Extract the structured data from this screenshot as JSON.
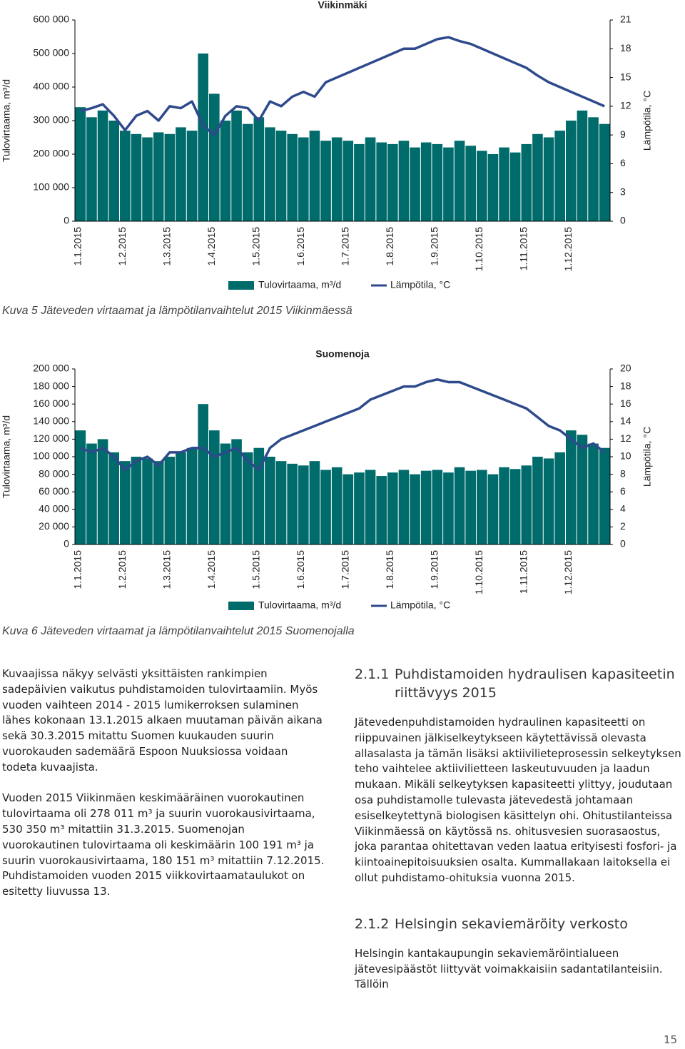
{
  "chart_data": [
    {
      "type": "combo",
      "title": "Viikinmäki",
      "ylabel": "Tulovirtaama, m³/d",
      "y2label": "Lämpötila, °C",
      "categories": [
        "1.1.2015",
        null,
        null,
        null,
        "1.2.2015",
        null,
        null,
        null,
        "1.3.2015",
        null,
        null,
        null,
        "1.4.2015",
        null,
        null,
        null,
        "1.5.2015",
        null,
        null,
        null,
        "1.6.2015",
        null,
        null,
        null,
        "1.7.2015",
        null,
        null,
        null,
        "1.8.2015",
        null,
        null,
        null,
        "1.9.2015",
        null,
        null,
        null,
        "1.10.2015",
        null,
        null,
        null,
        "1.11.2015",
        null,
        null,
        null,
        "1.12.2015",
        null,
        null,
        null
      ],
      "series": [
        {
          "name": "Tulovirtaama, m³/d",
          "color": "#006b6b",
          "values": [
            340000,
            310000,
            330000,
            300000,
            270000,
            260000,
            250000,
            265000,
            260000,
            280000,
            270000,
            500000,
            380000,
            300000,
            330000,
            290000,
            310000,
            280000,
            270000,
            260000,
            250000,
            270000,
            240000,
            250000,
            240000,
            230000,
            250000,
            235000,
            230000,
            240000,
            220000,
            235000,
            230000,
            220000,
            240000,
            225000,
            210000,
            200000,
            220000,
            205000,
            230000,
            260000,
            250000,
            270000,
            300000,
            330000,
            310000,
            290000
          ]
        },
        {
          "name": "Lämpötila, °C",
          "color": "#2e4a8c",
          "axis": "y2",
          "values": [
            11.5,
            11.8,
            12.2,
            11.0,
            9.5,
            11.0,
            11.5,
            10.5,
            12.0,
            11.8,
            12.5,
            10.0,
            9.0,
            11.0,
            12.0,
            11.8,
            10.5,
            12.5,
            12.0,
            13.0,
            13.5,
            13.0,
            14.5,
            15.0,
            15.5,
            16.0,
            16.5,
            17.0,
            17.5,
            18.0,
            18.0,
            18.5,
            19.0,
            19.2,
            18.8,
            18.5,
            18.0,
            17.5,
            17.0,
            16.5,
            16.0,
            15.2,
            14.5,
            14.0,
            13.5,
            13.0,
            12.5,
            12.0
          ]
        }
      ],
      "ylim": [
        0,
        600000
      ],
      "yticks": [
        0,
        {
          "value": 100000,
          "label": "100 000"
        },
        {
          "value": 200000,
          "label": "200 000"
        },
        {
          "value": 300000,
          "label": "300 000"
        },
        {
          "value": 400000,
          "label": "400 000"
        },
        {
          "value": 500000,
          "label": "500 000"
        },
        {
          "value": 600000,
          "label": "600 000"
        }
      ],
      "y2lim": [
        0,
        21
      ],
      "y2ticks": [
        0,
        3,
        6,
        9,
        12,
        15,
        18,
        21
      ],
      "caption": "Kuva 5 Jäteveden virtaamat ja lämpötilanvaihtelut 2015 Viikinmäessä"
    },
    {
      "type": "combo",
      "title": "Suomenoja",
      "ylabel": "Tulovirtaama, m³/d",
      "y2label": "Lämpötila, °C",
      "categories": [
        "1.1.2015",
        null,
        null,
        null,
        "1.2.2015",
        null,
        null,
        null,
        "1.3.2015",
        null,
        null,
        null,
        "1.4.2015",
        null,
        null,
        null,
        "1.5.2015",
        null,
        null,
        null,
        "1.6.2015",
        null,
        null,
        null,
        "1.7.2015",
        null,
        null,
        null,
        "1.8.2015",
        null,
        null,
        null,
        "1.9.2015",
        null,
        null,
        null,
        "1.10.2015",
        null,
        null,
        null,
        "1.11.2015",
        null,
        null,
        null,
        "1.12.2015",
        null,
        null,
        null
      ],
      "series": [
        {
          "name": "Tulovirtaama, m³/d",
          "color": "#006b6b",
          "values": [
            130000,
            115000,
            120000,
            105000,
            95000,
            100000,
            98000,
            95000,
            100000,
            105000,
            110000,
            160000,
            130000,
            115000,
            120000,
            105000,
            110000,
            100000,
            95000,
            92000,
            90000,
            95000,
            85000,
            88000,
            80000,
            82000,
            85000,
            78000,
            82000,
            85000,
            80000,
            84000,
            85000,
            82000,
            88000,
            84000,
            85000,
            80000,
            88000,
            86000,
            90000,
            100000,
            98000,
            105000,
            130000,
            125000,
            115000,
            110000
          ]
        },
        {
          "name": "Lämpötila, °C",
          "color": "#2e4a8c",
          "axis": "y2",
          "values": [
            11.0,
            10.5,
            11.0,
            10.0,
            8.5,
            9.5,
            10.0,
            9.0,
            10.5,
            10.5,
            11.0,
            11.0,
            10.0,
            10.5,
            11.0,
            9.5,
            8.5,
            11.0,
            12.0,
            12.5,
            13.0,
            13.5,
            14.0,
            14.5,
            15.0,
            15.5,
            16.5,
            17.0,
            17.5,
            18.0,
            18.0,
            18.5,
            18.8,
            18.5,
            18.5,
            18.0,
            17.5,
            17.0,
            16.5,
            16.0,
            15.5,
            14.5,
            13.5,
            13.0,
            12.0,
            11.0,
            11.5,
            10.5
          ]
        }
      ],
      "ylim": [
        0,
        200000
      ],
      "yticks": [
        0,
        {
          "value": 20000,
          "label": "20 000"
        },
        {
          "value": 40000,
          "label": "40 000"
        },
        {
          "value": 60000,
          "label": "60 000"
        },
        {
          "value": 80000,
          "label": "80 000"
        },
        {
          "value": 100000,
          "label": "100 000"
        },
        {
          "value": 120000,
          "label": "120 000"
        },
        {
          "value": 140000,
          "label": "140 000"
        },
        {
          "value": 160000,
          "label": "160 000"
        },
        {
          "value": 180000,
          "label": "180 000"
        },
        {
          "value": 200000,
          "label": "200 000"
        }
      ],
      "y2lim": [
        0,
        20
      ],
      "y2ticks": [
        0,
        2,
        4,
        6,
        8,
        10,
        12,
        14,
        16,
        18,
        20
      ],
      "caption": "Kuva 6 Jäteveden virtaamat ja lämpötilanvaihtelut 2015 Suomenojalla"
    }
  ],
  "body": {
    "left": [
      "Kuvaajissa näkyy selvästi yksittäisten rankimpien sadepäivien vaikutus puhdistamoiden tulovirtaamiin. Myös vuoden vaihteen 2014 - 2015 lumikerroksen sulaminen lähes kokonaan 13.1.2015 alkaen muutaman päivän aikana sekä 30.3.2015 mitattu Suomen kuukauden suurin vuorokauden sademäärä Espoon Nuuksiossa voidaan todeta kuvaajista.",
      "Vuoden 2015 Viikinmäen keskimääräinen vuorokautinen tulovirtaama oli 278 011 m³ ja suurin vuorokausivirtaama, 530 350 m³ mitattiin 31.3.2015. Suomenojan vuorokautinen tulovirtaama oli keskimäärin 100 191 m³ ja suurin vuorokausivirtaama, 180 151 m³ mitattiin 7.12.2015. Puhdistamoiden vuoden 2015 viikkovirtaamataulukot on esitetty liuvussa 13."
    ],
    "right": {
      "heading1": {
        "number": "2.1.1",
        "title": "Puhdistamoiden hydraulisen kapasiteetin riittävyys 2015"
      },
      "paragraph1": "Jätevedenpuhdistamoiden hydraulinen kapasiteetti on riippuvainen jälkiselkeytykseen käytettävissä olevasta allasalasta ja tämän lisäksi aktiivilieteprosessin selkeytyksen teho vaihtelee aktiivilietteen laskeutuvuuden ja laadun mukaan. Mikäli selkeytyksen kapasiteetti ylittyy, joudutaan osa puhdistamolle tulevasta jätevedestä johtamaan esiselkeytettynä biologisen käsittelyn ohi. Ohitustilanteissa Viikinmäessä on käytössä ns. ohitusvesien suorasaostus, joka parantaa ohitettavan veden laatua erityisesti fosfori- ja kiintoainepitoisuuksien osalta. Kummallakaan laitoksella ei ollut puhdistamo-ohituksia vuonna 2015.",
      "heading2": {
        "number": "2.1.2",
        "title": "Helsingin sekaviemäröity verkosto"
      },
      "paragraph2": "Helsingin kantakaupungin sekaviemäröintialueen jätevesipäästöt liittyvät voimakkaisiin sadantatilanteisiin. Tällöin"
    }
  },
  "page_number": "15"
}
